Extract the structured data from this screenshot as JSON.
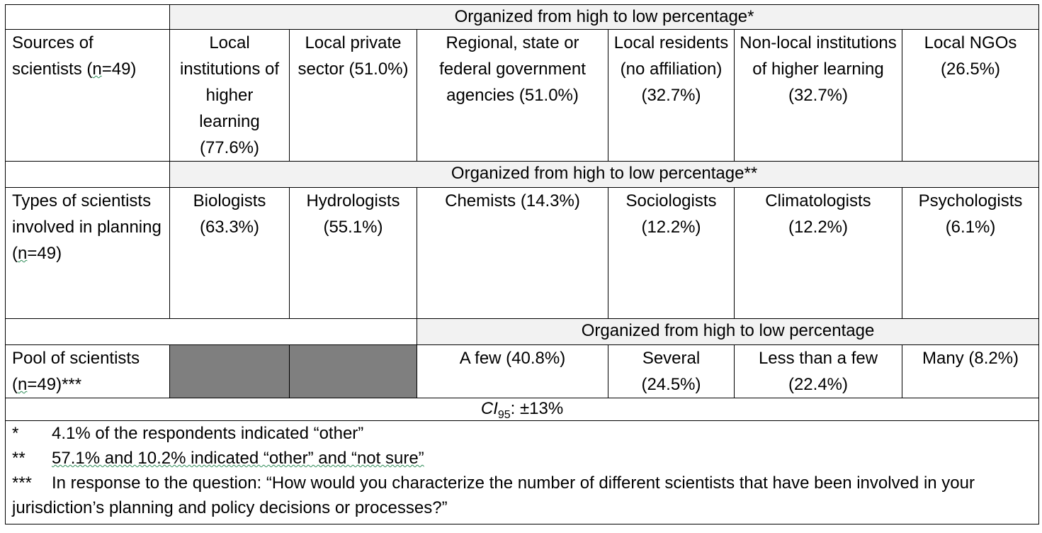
{
  "section1": {
    "header": "Organized from high to low percentage*",
    "row_label_pre": "Sources of scientists (",
    "row_label_n": "n",
    "row_label_post": "=49)",
    "cells": [
      "Local institutions of higher learning (77.6%)",
      "Local private sector (51.0%)",
      "Regional, state or federal government agencies (51.0%)",
      "Local residents (no affiliation) (32.7%)",
      "Non-local institutions of higher learning (32.7%)",
      "Local NGOs (26.5%)"
    ]
  },
  "section2": {
    "header": "Organized from high to low percentage**",
    "row_label_pre": "Types of scientists involved in planning (",
    "row_label_n": "n",
    "row_label_post": "=49)",
    "cells": [
      "Biologists (63.3%)",
      "Hydrologists (55.1%)",
      "Chemists (14.3%)",
      "Sociologists (12.2%)",
      "Climatologists (12.2%)",
      "Psychologists (6.1%)"
    ]
  },
  "section3": {
    "header": "Organized from high to low percentage",
    "row_label_pre": "Pool of scientists (",
    "row_label_n": "n",
    "row_label_post": "=49)***",
    "cells": [
      "A few (40.8%)",
      "Several (24.5%)",
      "Less than a few (22.4%)",
      "Many (8.2%)"
    ]
  },
  "ci": {
    "label": "CI",
    "sub": "95",
    "value": ": ±13%"
  },
  "notes": [
    {
      "marker": "*",
      "text": "4.1% of the respondents indicated “other”"
    },
    {
      "marker": "**",
      "text": "57.1% and 10.2% indicated “other” and “not sure”"
    },
    {
      "marker": "***",
      "text": "In response to the question: “How would you characterize the number of different scientists that have been involved in your jurisdiction’s planning and policy decisions or processes?”"
    }
  ],
  "colors": {
    "header_bg": "#f2f2f2",
    "shaded_cell": "#7f7f7f",
    "border": "#000000"
  }
}
